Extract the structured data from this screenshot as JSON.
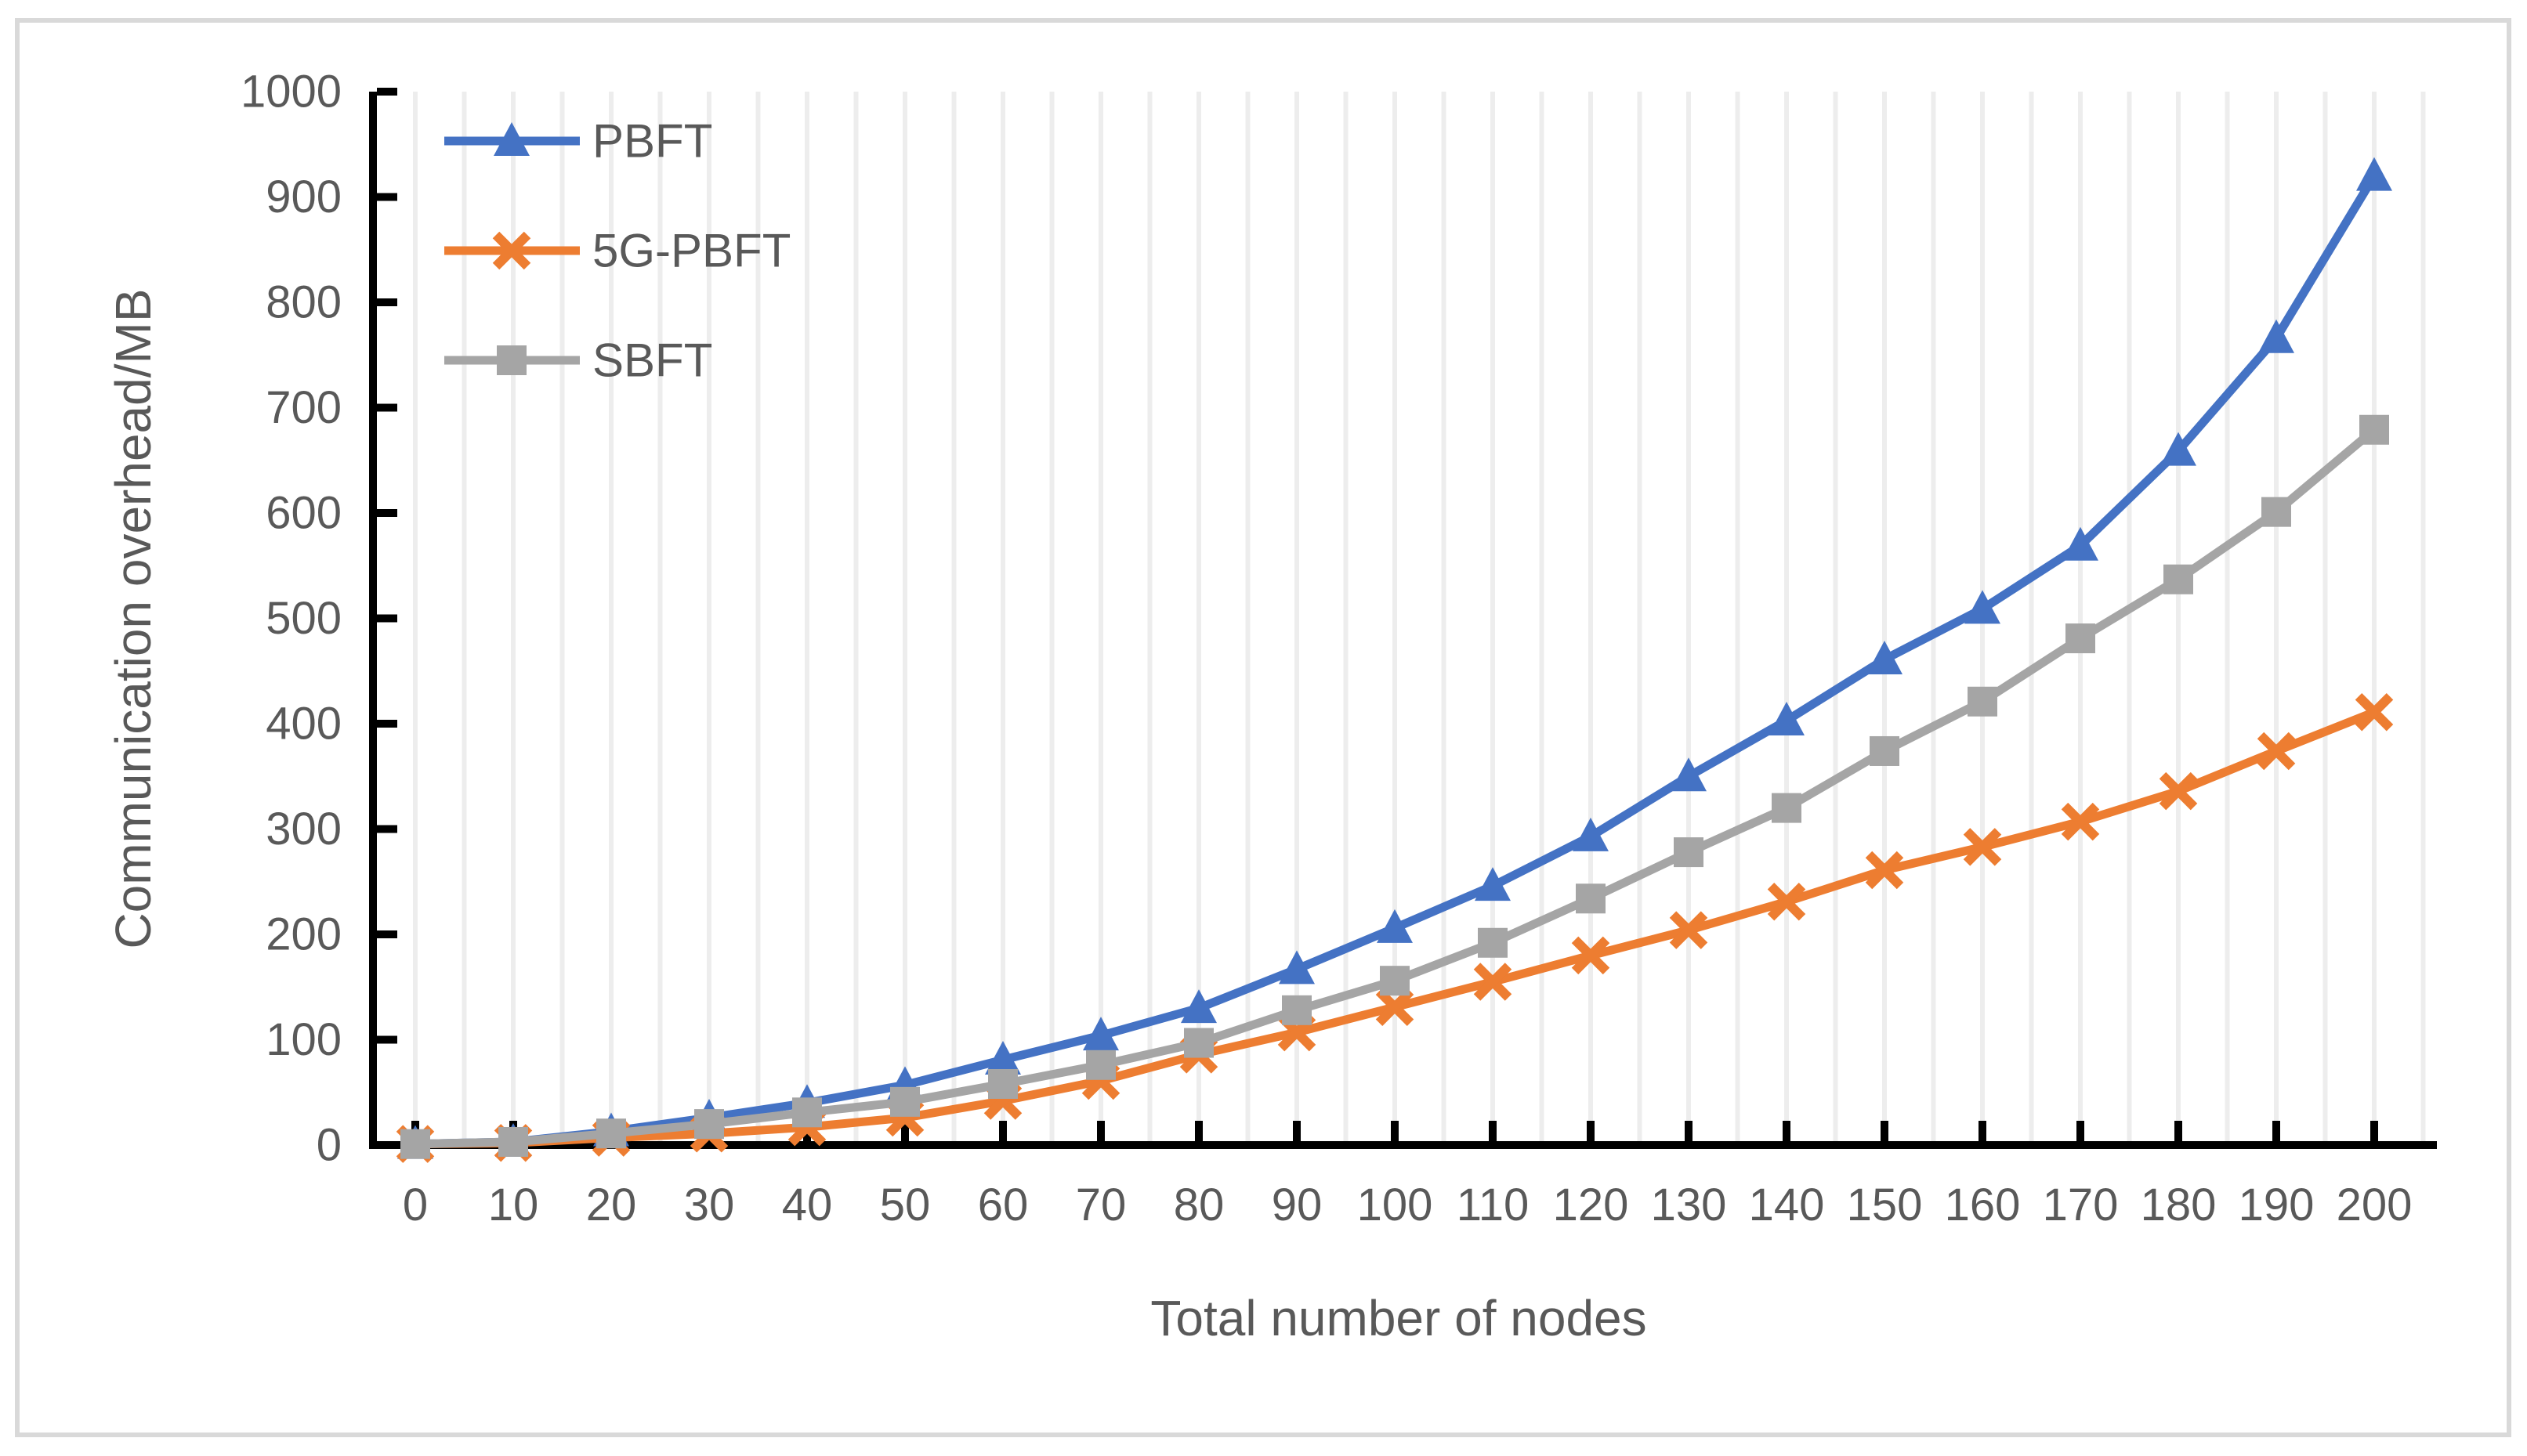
{
  "figure": {
    "type": "excel-style line chart",
    "background": "#ffffff",
    "border_color": "#d9d9d9"
  },
  "chart_data": {
    "type": "line",
    "title": "",
    "xlabel": "Total number of nodes",
    "ylabel": "Communication overhead/MB",
    "x": [
      0,
      10,
      20,
      30,
      40,
      50,
      60,
      70,
      80,
      90,
      100,
      110,
      120,
      130,
      140,
      150,
      160,
      170,
      180,
      190,
      200
    ],
    "series": [
      {
        "name": "PBFT",
        "color": "#4472C4",
        "marker": "triangle",
        "values": [
          1,
          3,
          13,
          26,
          40,
          57,
          81,
          104,
          130,
          167,
          206,
          246,
          293,
          350,
          403,
          461,
          509,
          569,
          659,
          766,
          920
        ]
      },
      {
        "name": "5G-PBFT",
        "color": "#ED7D31",
        "marker": "x",
        "values": [
          1,
          2,
          7,
          11,
          17,
          26,
          42,
          61,
          86,
          107,
          131,
          155,
          180,
          204,
          231,
          261,
          283,
          307,
          336,
          374,
          411
        ]
      },
      {
        "name": "SBFT",
        "color": "#A5A5A5",
        "marker": "square",
        "values": [
          1,
          3,
          11,
          20,
          31,
          41,
          58,
          76,
          97,
          128,
          156,
          192,
          234,
          278,
          320,
          374,
          421,
          481,
          537,
          601,
          679
        ]
      }
    ],
    "xlim": [
      0,
      200
    ],
    "ylim": [
      0,
      1000
    ],
    "x_ticks": [
      0,
      10,
      20,
      30,
      40,
      50,
      60,
      70,
      80,
      90,
      100,
      110,
      120,
      130,
      140,
      150,
      160,
      170,
      180,
      190,
      200
    ],
    "y_ticks": [
      0,
      100,
      200,
      300,
      400,
      500,
      600,
      700,
      800,
      900,
      1000
    ],
    "x_gridline_step": 5,
    "grid": "vertical-only",
    "legend_position": "top-left-inside",
    "colors": {
      "axis_line": "#000000",
      "tick_text": "#595959",
      "gridline": "#EDEDED",
      "plot_background": "#ffffff"
    }
  }
}
